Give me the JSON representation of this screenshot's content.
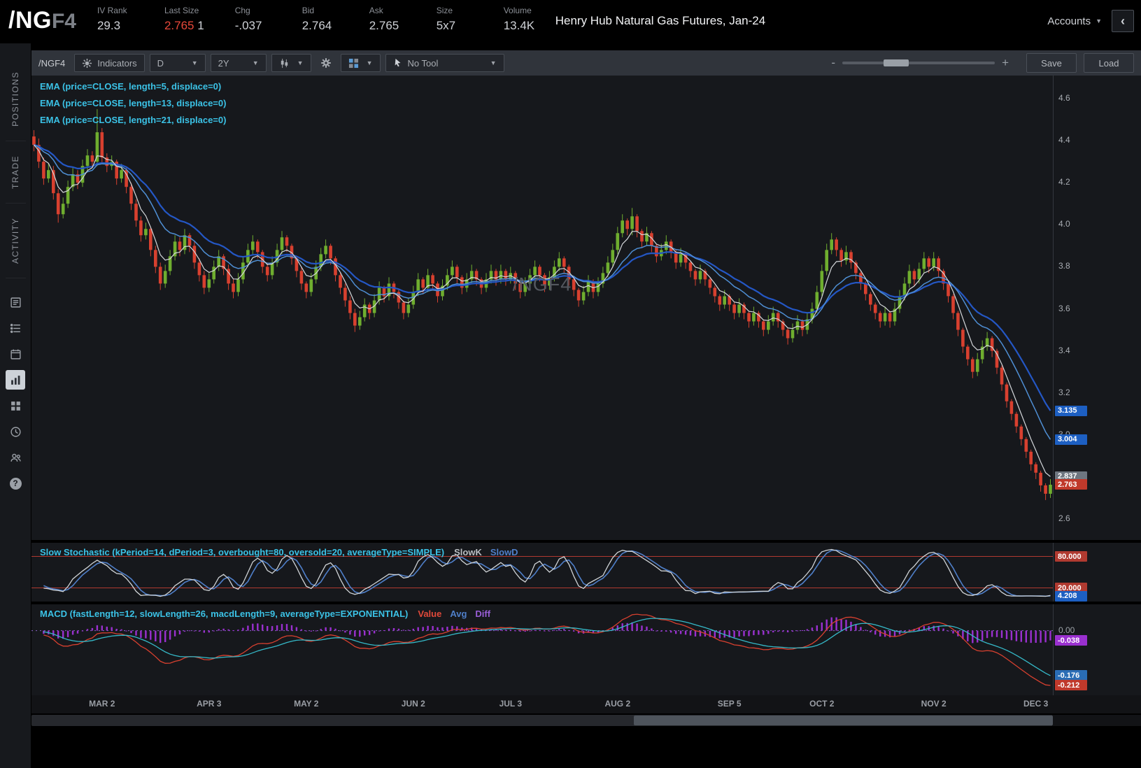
{
  "header": {
    "symbol": "/NG",
    "symbol_suffix": "F4",
    "fields": [
      {
        "label": "IV Rank",
        "value": "29.3"
      },
      {
        "label": "Last Size",
        "value": "2.765",
        "extra": "1"
      },
      {
        "label": "Chg",
        "value": "-.037"
      },
      {
        "label": "Bid",
        "value": "2.764"
      },
      {
        "label": "Ask",
        "value": "2.765"
      },
      {
        "label": "Size",
        "value": "5x7"
      },
      {
        "label": "Volume",
        "value": "13.4K"
      }
    ],
    "title": "Henry Hub Natural Gas Futures, Jan-24",
    "accounts_label": "Accounts",
    "collapse_icon": "‹"
  },
  "sidebar": {
    "tabs": [
      {
        "label": "POSITIONS"
      },
      {
        "label": "TRADE"
      },
      {
        "label": "ACTIVITY"
      }
    ],
    "icons": [
      "news",
      "watchlist",
      "calendar",
      "chart",
      "apps-grid",
      "history-clock",
      "share-users",
      "help"
    ]
  },
  "toolbar": {
    "symbol_label": "/NGF4",
    "indicators_label": "Indicators",
    "timeframe_value": "D",
    "range_value": "2Y",
    "drawing_tool_value": "No Tool",
    "zoom_minus": "-",
    "zoom_plus": "+",
    "save_label": "Save",
    "load_label": "Load"
  },
  "chart_data": {
    "type": "candlestick",
    "symbol": "/NGF4",
    "watermark": "/NGF4",
    "timeframe": "D",
    "range": "2Y",
    "price_axis": {
      "min": 2.5,
      "max": 4.71,
      "ticks": [
        4.6,
        4.4,
        4.2,
        4.0,
        3.8,
        3.6,
        3.4,
        3.2,
        3.0,
        2.8,
        2.6
      ]
    },
    "x_axis_labels": [
      {
        "label": "MAR 2",
        "index": 14
      },
      {
        "label": "APR 3",
        "index": 36
      },
      {
        "label": "MAY 2",
        "index": 56
      },
      {
        "label": "JUN 2",
        "index": 78
      },
      {
        "label": "JUL 3",
        "index": 98
      },
      {
        "label": "AUG 2",
        "index": 120
      },
      {
        "label": "SEP 5",
        "index": 143
      },
      {
        "label": "OCT 2",
        "index": 162
      },
      {
        "label": "NOV 2",
        "index": 185
      },
      {
        "label": "DEC 3",
        "index": 206
      }
    ],
    "colors": {
      "up": "#6fae2f",
      "down": "#d8402f",
      "ema5": "#d4d7da",
      "ema13": "#4f8fd4",
      "ema21": "#2457c5",
      "stoch_k": "#cfd3d6",
      "stoch_d": "#4f7fc9",
      "stoch_levels": "#b03a30",
      "macd_value": "#d8402f",
      "macd_avg": "#35b9c8",
      "macd_hist": "#9a30cf",
      "tag_blue": "#1d5fc2",
      "tag_gray": "#6e7680",
      "tag_red": "#c0392b",
      "tag_purple": "#9a30cf",
      "tag_cyan": "#2a6db5"
    },
    "studies": {
      "emas": [
        {
          "label": "EMA (price=CLOSE, length=5, displace=0)",
          "length": 5
        },
        {
          "label": "EMA (price=CLOSE, length=13, displace=0)",
          "length": 13
        },
        {
          "label": "EMA (price=CLOSE, length=21, displace=0)",
          "length": 21
        }
      ],
      "stochastic": {
        "label": "Slow Stochastic (kPeriod=14, dPeriod=3, overbought=80, oversold=20, averageType=SIMPLE)",
        "legend_k": "SlowK",
        "legend_d": "SlowD",
        "overbought": 80,
        "oversold": 20
      },
      "macd": {
        "label": "MACD (fastLength=12, slowLength=26, macdLength=9, averageType=EXPONENTIAL)",
        "legend_value": "Value",
        "legend_avg": "Avg",
        "legend_diff": "Diff",
        "fast": 12,
        "slow": 26,
        "signal": 9
      }
    },
    "current": {
      "ema21": "3.135",
      "ema13": "3.004",
      "ema5": "2.837",
      "last": "2.763",
      "stoch_overbought": "80.000",
      "stoch_oversold": "20.000",
      "stoch_d": "4.208",
      "macd_zero": "0.00",
      "macd_diff": "-0.038",
      "macd_avg": "-0.176",
      "macd_value": "-0.212"
    },
    "candles": [
      [
        4.42,
        4.45,
        4.35,
        4.38
      ],
      [
        4.38,
        4.41,
        4.27,
        4.3
      ],
      [
        4.3,
        4.32,
        4.19,
        4.22
      ],
      [
        4.22,
        4.29,
        4.2,
        4.26
      ],
      [
        4.26,
        4.28,
        4.12,
        4.15
      ],
      [
        4.15,
        4.17,
        4.01,
        4.05
      ],
      [
        4.05,
        4.13,
        4.03,
        4.1
      ],
      [
        4.1,
        4.21,
        4.08,
        4.18
      ],
      [
        4.18,
        4.27,
        4.16,
        4.24
      ],
      [
        4.24,
        4.26,
        4.17,
        4.2
      ],
      [
        4.2,
        4.31,
        4.18,
        4.28
      ],
      [
        4.28,
        4.36,
        4.26,
        4.33
      ],
      [
        4.33,
        4.35,
        4.27,
        4.3
      ],
      [
        4.3,
        4.55,
        4.28,
        4.44
      ],
      [
        4.44,
        4.46,
        4.29,
        4.32
      ],
      [
        4.32,
        4.34,
        4.25,
        4.28
      ],
      [
        4.28,
        4.33,
        4.26,
        4.3
      ],
      [
        4.3,
        4.31,
        4.19,
        4.22
      ],
      [
        4.22,
        4.29,
        4.2,
        4.26
      ],
      [
        4.26,
        4.27,
        4.15,
        4.18
      ],
      [
        4.18,
        4.2,
        4.07,
        4.1
      ],
      [
        4.1,
        4.12,
        3.99,
        4.02
      ],
      [
        4.02,
        4.04,
        3.92,
        3.95
      ],
      [
        3.95,
        4.01,
        3.93,
        3.98
      ],
      [
        3.98,
        3.99,
        3.85,
        3.88
      ],
      [
        3.88,
        3.9,
        3.77,
        3.8
      ],
      [
        3.8,
        3.82,
        3.69,
        3.72
      ],
      [
        3.72,
        3.81,
        3.7,
        3.78
      ],
      [
        3.78,
        3.88,
        3.76,
        3.85
      ],
      [
        3.85,
        3.95,
        3.83,
        3.92
      ],
      [
        3.92,
        3.94,
        3.85,
        3.88
      ],
      [
        3.88,
        3.98,
        3.86,
        3.95
      ],
      [
        3.95,
        3.96,
        3.87,
        3.9
      ],
      [
        3.9,
        3.92,
        3.79,
        3.82
      ],
      [
        3.82,
        3.84,
        3.73,
        3.76
      ],
      [
        3.76,
        3.78,
        3.67,
        3.7
      ],
      [
        3.7,
        3.77,
        3.68,
        3.74
      ],
      [
        3.74,
        3.83,
        3.72,
        3.8
      ],
      [
        3.8,
        3.88,
        3.78,
        3.85
      ],
      [
        3.85,
        3.86,
        3.76,
        3.79
      ],
      [
        3.79,
        3.81,
        3.69,
        3.72
      ],
      [
        3.72,
        3.74,
        3.65,
        3.68
      ],
      [
        3.68,
        3.77,
        3.66,
        3.74
      ],
      [
        3.74,
        3.85,
        3.72,
        3.82
      ],
      [
        3.82,
        3.91,
        3.8,
        3.88
      ],
      [
        3.88,
        3.95,
        3.86,
        3.92
      ],
      [
        3.92,
        3.93,
        3.84,
        3.87
      ],
      [
        3.87,
        3.88,
        3.77,
        3.8
      ],
      [
        3.8,
        3.82,
        3.73,
        3.76
      ],
      [
        3.76,
        3.85,
        3.74,
        3.82
      ],
      [
        3.82,
        3.91,
        3.8,
        3.88
      ],
      [
        3.88,
        3.97,
        3.86,
        3.94
      ],
      [
        3.94,
        3.95,
        3.87,
        3.9
      ],
      [
        3.9,
        3.91,
        3.81,
        3.84
      ],
      [
        3.84,
        3.85,
        3.75,
        3.78
      ],
      [
        3.78,
        3.8,
        3.69,
        3.72
      ],
      [
        3.72,
        3.73,
        3.65,
        3.68
      ],
      [
        3.68,
        3.77,
        3.66,
        3.74
      ],
      [
        3.74,
        3.83,
        3.72,
        3.8
      ],
      [
        3.8,
        3.89,
        3.78,
        3.86
      ],
      [
        3.86,
        3.93,
        3.84,
        3.9
      ],
      [
        3.9,
        3.91,
        3.81,
        3.84
      ],
      [
        3.84,
        3.85,
        3.73,
        3.76
      ],
      [
        3.76,
        3.77,
        3.67,
        3.7
      ],
      [
        3.7,
        3.72,
        3.61,
        3.64
      ],
      [
        3.64,
        3.66,
        3.55,
        3.58
      ],
      [
        3.58,
        3.6,
        3.49,
        3.52
      ],
      [
        3.52,
        3.59,
        3.5,
        3.56
      ],
      [
        3.56,
        3.65,
        3.54,
        3.62
      ],
      [
        3.62,
        3.63,
        3.55,
        3.58
      ],
      [
        3.58,
        3.67,
        3.56,
        3.64
      ],
      [
        3.64,
        3.73,
        3.62,
        3.7
      ],
      [
        3.7,
        3.71,
        3.63,
        3.66
      ],
      [
        3.66,
        3.75,
        3.64,
        3.72
      ],
      [
        3.72,
        3.73,
        3.65,
        3.68
      ],
      [
        3.68,
        3.69,
        3.6,
        3.63
      ],
      [
        3.63,
        3.64,
        3.55,
        3.58
      ],
      [
        3.58,
        3.65,
        3.56,
        3.62
      ],
      [
        3.62,
        3.71,
        3.6,
        3.68
      ],
      [
        3.68,
        3.77,
        3.66,
        3.74
      ],
      [
        3.74,
        3.75,
        3.67,
        3.7
      ],
      [
        3.7,
        3.79,
        3.68,
        3.76
      ],
      [
        3.76,
        3.77,
        3.69,
        3.72
      ],
      [
        3.72,
        3.73,
        3.63,
        3.66
      ],
      [
        3.66,
        3.74,
        3.64,
        3.71
      ],
      [
        3.71,
        3.79,
        3.69,
        3.76
      ],
      [
        3.76,
        3.83,
        3.74,
        3.8
      ],
      [
        3.8,
        3.81,
        3.72,
        3.75
      ],
      [
        3.75,
        3.76,
        3.67,
        3.7
      ],
      [
        3.7,
        3.77,
        3.68,
        3.74
      ],
      [
        3.74,
        3.81,
        3.72,
        3.78
      ],
      [
        3.78,
        3.79,
        3.71,
        3.74
      ],
      [
        3.74,
        3.75,
        3.67,
        3.7
      ],
      [
        3.7,
        3.77,
        3.68,
        3.74
      ],
      [
        3.74,
        3.81,
        3.72,
        3.78
      ],
      [
        3.78,
        3.79,
        3.71,
        3.74
      ],
      [
        3.74,
        3.81,
        3.72,
        3.78
      ],
      [
        3.78,
        3.79,
        3.71,
        3.74
      ],
      [
        3.74,
        3.8,
        3.72,
        3.77
      ],
      [
        3.77,
        3.78,
        3.69,
        3.72
      ],
      [
        3.72,
        3.73,
        3.65,
        3.68
      ],
      [
        3.68,
        3.75,
        3.66,
        3.72
      ],
      [
        3.72,
        3.79,
        3.7,
        3.76
      ],
      [
        3.76,
        3.83,
        3.74,
        3.8
      ],
      [
        3.8,
        3.81,
        3.73,
        3.76
      ],
      [
        3.76,
        3.77,
        3.68,
        3.71
      ],
      [
        3.71,
        3.78,
        3.69,
        3.75
      ],
      [
        3.75,
        3.83,
        3.73,
        3.8
      ],
      [
        3.8,
        3.87,
        3.78,
        3.84
      ],
      [
        3.84,
        3.85,
        3.77,
        3.8
      ],
      [
        3.8,
        3.81,
        3.71,
        3.74
      ],
      [
        3.74,
        3.75,
        3.66,
        3.69
      ],
      [
        3.69,
        3.7,
        3.61,
        3.64
      ],
      [
        3.64,
        3.71,
        3.62,
        3.68
      ],
      [
        3.68,
        3.76,
        3.66,
        3.73
      ],
      [
        3.73,
        3.74,
        3.65,
        3.68
      ],
      [
        3.68,
        3.75,
        3.66,
        3.72
      ],
      [
        3.72,
        3.8,
        3.7,
        3.77
      ],
      [
        3.77,
        3.85,
        3.75,
        3.82
      ],
      [
        3.82,
        3.91,
        3.8,
        3.88
      ],
      [
        3.88,
        3.99,
        3.86,
        3.96
      ],
      [
        3.96,
        4.05,
        3.94,
        4.02
      ],
      [
        4.02,
        4.03,
        3.95,
        3.98
      ],
      [
        3.98,
        4.08,
        3.95,
        4.04
      ],
      [
        4.04,
        4.05,
        3.94,
        3.97
      ],
      [
        3.97,
        3.98,
        3.89,
        3.92
      ],
      [
        3.92,
        3.99,
        3.9,
        3.96
      ],
      [
        3.96,
        3.97,
        3.87,
        3.9
      ],
      [
        3.9,
        3.91,
        3.82,
        3.85
      ],
      [
        3.85,
        3.91,
        3.83,
        3.88
      ],
      [
        3.88,
        3.95,
        3.86,
        3.92
      ],
      [
        3.92,
        3.93,
        3.84,
        3.87
      ],
      [
        3.87,
        3.88,
        3.79,
        3.82
      ],
      [
        3.82,
        3.89,
        3.8,
        3.86
      ],
      [
        3.86,
        3.87,
        3.79,
        3.82
      ],
      [
        3.82,
        3.83,
        3.75,
        3.78
      ],
      [
        3.78,
        3.79,
        3.71,
        3.74
      ],
      [
        3.74,
        3.81,
        3.72,
        3.78
      ],
      [
        3.78,
        3.79,
        3.71,
        3.74
      ],
      [
        3.74,
        3.75,
        3.67,
        3.7
      ],
      [
        3.7,
        3.71,
        3.63,
        3.66
      ],
      [
        3.66,
        3.67,
        3.59,
        3.62
      ],
      [
        3.62,
        3.69,
        3.6,
        3.66
      ],
      [
        3.66,
        3.67,
        3.59,
        3.62
      ],
      [
        3.62,
        3.63,
        3.55,
        3.58
      ],
      [
        3.58,
        3.65,
        3.56,
        3.62
      ],
      [
        3.62,
        3.63,
        3.55,
        3.58
      ],
      [
        3.58,
        3.59,
        3.51,
        3.54
      ],
      [
        3.54,
        3.61,
        3.52,
        3.58
      ],
      [
        3.58,
        3.59,
        3.51,
        3.54
      ],
      [
        3.54,
        3.55,
        3.47,
        3.5
      ],
      [
        3.5,
        3.57,
        3.48,
        3.54
      ],
      [
        3.54,
        3.61,
        3.52,
        3.58
      ],
      [
        3.58,
        3.59,
        3.51,
        3.54
      ],
      [
        3.54,
        3.55,
        3.47,
        3.5
      ],
      [
        3.5,
        3.51,
        3.43,
        3.46
      ],
      [
        3.46,
        3.53,
        3.44,
        3.5
      ],
      [
        3.5,
        3.57,
        3.48,
        3.54
      ],
      [
        3.54,
        3.55,
        3.47,
        3.5
      ],
      [
        3.5,
        3.58,
        3.48,
        3.55
      ],
      [
        3.55,
        3.63,
        3.53,
        3.6
      ],
      [
        3.6,
        3.71,
        3.58,
        3.68
      ],
      [
        3.68,
        3.81,
        3.66,
        3.78
      ],
      [
        3.78,
        3.91,
        3.76,
        3.88
      ],
      [
        3.88,
        3.96,
        3.86,
        3.93
      ],
      [
        3.93,
        3.94,
        3.85,
        3.88
      ],
      [
        3.88,
        3.89,
        3.8,
        3.83
      ],
      [
        3.83,
        3.9,
        3.81,
        3.87
      ],
      [
        3.87,
        3.88,
        3.79,
        3.82
      ],
      [
        3.82,
        3.83,
        3.74,
        3.77
      ],
      [
        3.77,
        3.78,
        3.69,
        3.72
      ],
      [
        3.72,
        3.73,
        3.64,
        3.67
      ],
      [
        3.67,
        3.68,
        3.59,
        3.62
      ],
      [
        3.62,
        3.63,
        3.55,
        3.58
      ],
      [
        3.58,
        3.59,
        3.51,
        3.54
      ],
      [
        3.54,
        3.61,
        3.52,
        3.58
      ],
      [
        3.58,
        3.59,
        3.51,
        3.54
      ],
      [
        3.54,
        3.63,
        3.52,
        3.6
      ],
      [
        3.6,
        3.69,
        3.58,
        3.66
      ],
      [
        3.66,
        3.75,
        3.64,
        3.72
      ],
      [
        3.72,
        3.81,
        3.7,
        3.78
      ],
      [
        3.78,
        3.79,
        3.71,
        3.74
      ],
      [
        3.74,
        3.82,
        3.72,
        3.79
      ],
      [
        3.79,
        3.87,
        3.77,
        3.84
      ],
      [
        3.84,
        3.85,
        3.77,
        3.8
      ],
      [
        3.8,
        3.87,
        3.78,
        3.84
      ],
      [
        3.84,
        3.85,
        3.75,
        3.78
      ],
      [
        3.78,
        3.79,
        3.69,
        3.72
      ],
      [
        3.72,
        3.73,
        3.63,
        3.66
      ],
      [
        3.66,
        3.67,
        3.55,
        3.58
      ],
      [
        3.58,
        3.59,
        3.47,
        3.5
      ],
      [
        3.5,
        3.51,
        3.39,
        3.42
      ],
      [
        3.42,
        3.43,
        3.33,
        3.36
      ],
      [
        3.36,
        3.37,
        3.27,
        3.3
      ],
      [
        3.3,
        3.39,
        3.28,
        3.36
      ],
      [
        3.36,
        3.45,
        3.34,
        3.42
      ],
      [
        3.42,
        3.49,
        3.4,
        3.46
      ],
      [
        3.46,
        3.47,
        3.37,
        3.4
      ],
      [
        3.4,
        3.41,
        3.29,
        3.32
      ],
      [
        3.32,
        3.33,
        3.21,
        3.24
      ],
      [
        3.24,
        3.25,
        3.13,
        3.16
      ],
      [
        3.16,
        3.17,
        3.07,
        3.1
      ],
      [
        3.1,
        3.11,
        3.01,
        3.04
      ],
      [
        3.04,
        3.05,
        2.95,
        2.98
      ],
      [
        2.98,
        2.99,
        2.89,
        2.92
      ],
      [
        2.92,
        2.93,
        2.83,
        2.86
      ],
      [
        2.86,
        2.87,
        2.79,
        2.82
      ],
      [
        2.82,
        2.83,
        2.73,
        2.76
      ],
      [
        2.76,
        2.77,
        2.69,
        2.72
      ],
      [
        2.72,
        2.79,
        2.7,
        2.763
      ]
    ]
  }
}
